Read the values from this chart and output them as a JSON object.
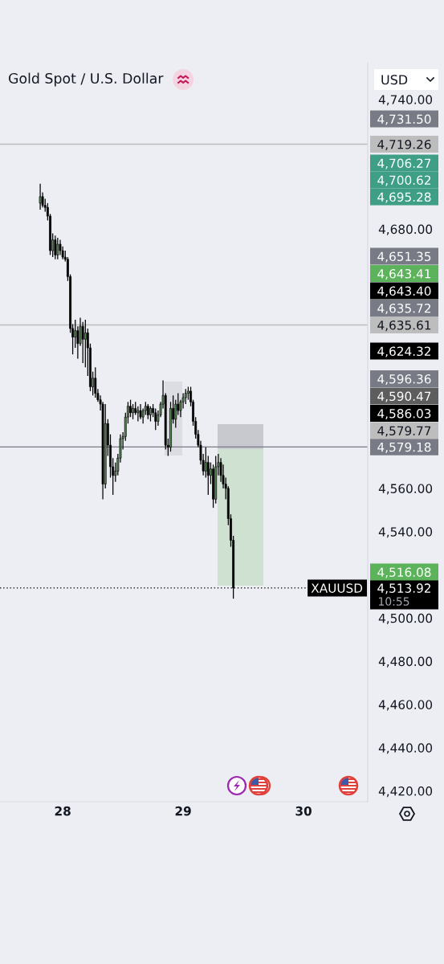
{
  "chart_data": {
    "type": "candlestick",
    "title": "Gold Spot / U.S. Dollar",
    "ylabel": "USD",
    "x": [
      27.813,
      27.833,
      27.854,
      27.875,
      27.896,
      27.917,
      27.938,
      27.958,
      27.979,
      28,
      28.021,
      28.042,
      28.063,
      28.083,
      28.104,
      28.125,
      28.146,
      28.167,
      28.188,
      28.208,
      28.229,
      28.25,
      28.271,
      28.292,
      28.313,
      28.333,
      28.354,
      28.375,
      28.396,
      28.417,
      28.438,
      28.458,
      28.479,
      28.5,
      28.521,
      28.542,
      28.563,
      28.583,
      28.604,
      28.625,
      28.646,
      28.667,
      28.688,
      28.708,
      28.729,
      28.75,
      28.771,
      28.792,
      28.813,
      28.833,
      28.854,
      28.875,
      28.896,
      28.917,
      28.938,
      28.958,
      28.979,
      29,
      29.021,
      29.042,
      29.063,
      29.083,
      29.104,
      29.125,
      29.146,
      29.167,
      29.188,
      29.208,
      29.229,
      29.25,
      29.271,
      29.292,
      29.313,
      29.333,
      29.354,
      29.375,
      29.396,
      29.417
    ],
    "ohlc": [
      [
        4692,
        4701,
        4689,
        4695
      ],
      [
        4695,
        4697,
        4690,
        4691
      ],
      [
        4691,
        4694,
        4688,
        4690
      ],
      [
        4690,
        4692,
        4684,
        4686
      ],
      [
        4686,
        4687,
        4668,
        4670
      ],
      [
        4670,
        4678,
        4667,
        4675
      ],
      [
        4675,
        4677,
        4666,
        4668
      ],
      [
        4668,
        4676,
        4666,
        4673
      ],
      [
        4673,
        4675,
        4668,
        4670
      ],
      [
        4670,
        4672,
        4666,
        4667
      ],
      [
        4667,
        4670,
        4665,
        4666
      ],
      [
        4666,
        4667,
        4656,
        4658
      ],
      [
        4658,
        4659,
        4632,
        4634
      ],
      [
        4634,
        4636,
        4622,
        4630
      ],
      [
        4630,
        4638,
        4625,
        4633
      ],
      [
        4633,
        4635,
        4620,
        4627
      ],
      [
        4627,
        4639,
        4626,
        4635
      ],
      [
        4635,
        4637,
        4618,
        4629
      ],
      [
        4629,
        4638,
        4616,
        4632
      ],
      [
        4632,
        4634,
        4612,
        4625
      ],
      [
        4625,
        4627,
        4605,
        4607
      ],
      [
        4607,
        4614,
        4603,
        4611
      ],
      [
        4611,
        4616,
        4602,
        4604
      ],
      [
        4604,
        4606,
        4600,
        4601
      ],
      [
        4601,
        4603,
        4596,
        4599
      ],
      [
        4599,
        4600,
        4555,
        4562
      ],
      [
        4562,
        4599,
        4560,
        4590
      ],
      [
        4590,
        4592,
        4575,
        4580
      ],
      [
        4580,
        4585,
        4565,
        4570
      ],
      [
        4570,
        4574,
        4557,
        4566
      ],
      [
        4566,
        4572,
        4563,
        4568
      ],
      [
        4568,
        4576,
        4566,
        4574
      ],
      [
        4574,
        4585,
        4572,
        4583
      ],
      [
        4583,
        4586,
        4578,
        4584
      ],
      [
        4584,
        4595,
        4582,
        4593
      ],
      [
        4593,
        4600,
        4590,
        4598
      ],
      [
        4598,
        4601,
        4593,
        4595
      ],
      [
        4595,
        4599,
        4592,
        4597
      ],
      [
        4597,
        4600,
        4594,
        4595
      ],
      [
        4595,
        4598,
        4591,
        4596
      ],
      [
        4596,
        4599,
        4592,
        4593
      ],
      [
        4593,
        4597,
        4590,
        4596
      ],
      [
        4596,
        4600,
        4594,
        4598
      ],
      [
        4598,
        4599,
        4592,
        4594
      ],
      [
        4594,
        4598,
        4591,
        4597
      ],
      [
        4597,
        4599,
        4593,
        4595
      ],
      [
        4595,
        4597,
        4587,
        4591
      ],
      [
        4591,
        4596,
        4589,
        4594
      ],
      [
        4594,
        4600,
        4593,
        4599
      ],
      [
        4599,
        4610,
        4597,
        4603
      ],
      [
        4603,
        4604,
        4578,
        4580
      ],
      [
        4580,
        4583,
        4575,
        4579
      ],
      [
        4579,
        4600,
        4577,
        4597
      ],
      [
        4597,
        4603,
        4590,
        4592
      ],
      [
        4592,
        4601,
        4588,
        4599
      ],
      [
        4599,
        4604,
        4594,
        4596
      ],
      [
        4596,
        4601,
        4593,
        4600
      ],
      [
        4600,
        4604,
        4597,
        4602
      ],
      [
        4602,
        4606,
        4599,
        4604
      ],
      [
        4604,
        4607,
        4601,
        4605
      ],
      [
        4605,
        4607,
        4598,
        4600
      ],
      [
        4600,
        4601,
        4589,
        4591
      ],
      [
        4591,
        4593,
        4583,
        4585
      ],
      [
        4585,
        4587,
        4579,
        4580
      ],
      [
        4580,
        4582,
        4571,
        4573
      ],
      [
        4573,
        4576,
        4566,
        4568
      ],
      [
        4568,
        4579,
        4565,
        4572
      ],
      [
        4572,
        4575,
        4557,
        4566
      ],
      [
        4566,
        4572,
        4562,
        4569
      ],
      [
        4569,
        4571,
        4551,
        4555
      ],
      [
        4555,
        4575,
        4553,
        4570
      ],
      [
        4570,
        4576,
        4566,
        4572
      ],
      [
        4572,
        4574,
        4563,
        4566
      ],
      [
        4566,
        4571,
        4560,
        4562
      ],
      [
        4562,
        4565,
        4555,
        4560
      ],
      [
        4560,
        4561,
        4543,
        4546
      ],
      [
        4546,
        4548,
        4533,
        4536
      ],
      [
        4536,
        4538,
        4509,
        4513.92
      ]
    ],
    "xlim": [
      27.479,
      30.533
    ],
    "xticks": [
      28,
      29,
      30
    ],
    "ylim": [
      4415,
      4757
    ],
    "yticks": [
      {
        "value": 4740,
        "label": "4,740.00"
      },
      {
        "value": 4680,
        "label": "4,680.00"
      },
      {
        "value": 4560,
        "label": "4,560.00"
      },
      {
        "value": 4540,
        "label": "4,540.00"
      },
      {
        "value": 4500,
        "label": "4,500.00"
      },
      {
        "value": 4480,
        "label": "4,480.00"
      },
      {
        "value": 4460,
        "label": "4,460.00"
      },
      {
        "value": 4440,
        "label": "4,440.00"
      },
      {
        "value": 4420,
        "label": "4,420.00"
      }
    ],
    "ref_lines": [
      {
        "axis": "y",
        "value": 4719.26,
        "label": "4,719.26",
        "color": "#bdbdbd"
      },
      {
        "axis": "y",
        "value": 4635.61,
        "label": "4,635.61",
        "color": "#bdbdbd"
      },
      {
        "axis": "y",
        "value": 4579.18,
        "label": "4,579.18",
        "color": "#787b86"
      },
      {
        "axis": "y",
        "value": 4513.92,
        "label": "4,513.92",
        "color": "#000000",
        "line_style": "dotted"
      }
    ],
    "annotations": [
      "4,731.50",
      "4,706.27",
      "4,700.62",
      "4,695.28",
      "4,651.35",
      "4,643.41",
      "4,643.40",
      "4,635.72",
      "4,624.32",
      "4,596.36",
      "4,590.47",
      "4,586.03",
      "4,579.77",
      "4,516.08",
      "XAUUSD",
      "10:55"
    ]
  }
}
